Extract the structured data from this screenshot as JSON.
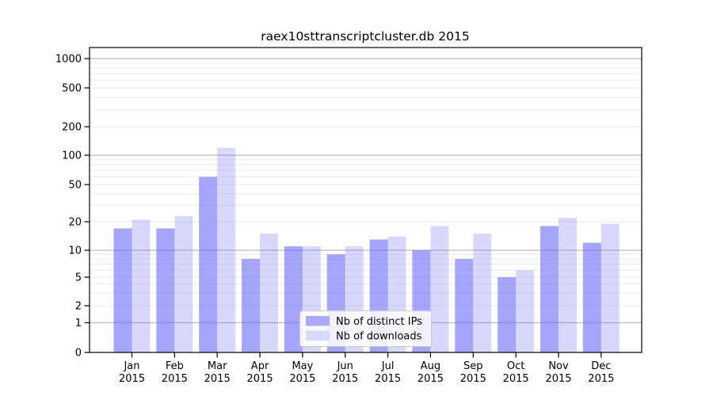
{
  "chart_data": {
    "type": "bar",
    "title": "raex10sttranscriptcluster.db 2015",
    "year": "2015",
    "scale_y": "symlog",
    "ylim": [
      0,
      1300
    ],
    "yticks": [
      0,
      1,
      2,
      5,
      10,
      20,
      50,
      100,
      200,
      500,
      1000
    ],
    "grid": "horizontal only: dark lines at decades (1,10,100,1000), faint log minor lines at 2-9 multiples",
    "legend_position": "lower-center-inside",
    "categories": [
      "Jan",
      "Feb",
      "Mar",
      "Apr",
      "May",
      "Jun",
      "Jul",
      "Aug",
      "Sep",
      "Oct",
      "Nov",
      "Dec"
    ],
    "series": [
      {
        "name": "Nb of distinct IPs",
        "color": "#a9a9f7",
        "fill_rgba": "rgba(110,110,245,0.62)",
        "values": [
          17,
          17,
          60,
          8,
          11,
          9,
          13,
          10,
          8,
          5,
          18,
          12
        ]
      },
      {
        "name": "Nb of downloads",
        "color": "#d9d9f9",
        "fill_rgba": "rgba(110,110,245,0.27)",
        "values": [
          21,
          23,
          120,
          15,
          11,
          11,
          14,
          18,
          15,
          6,
          22,
          19
        ]
      }
    ],
    "colors": {
      "major_grid": "#bbbbbb",
      "minor_grid": "#eaeaea",
      "axis_frame": "#000000",
      "text": "#000000",
      "legend_border": "#cccccc",
      "legend_bg": "#ffffff"
    }
  }
}
